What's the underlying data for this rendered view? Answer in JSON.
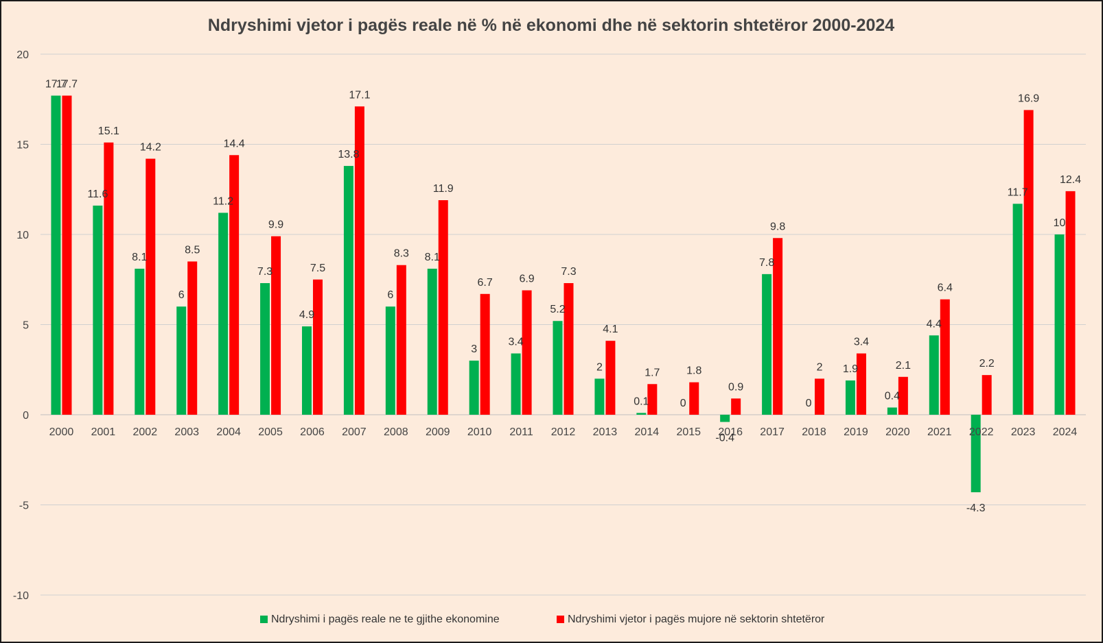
{
  "chart_data": {
    "type": "bar",
    "title": "Ndryshimi vjetor i pagës reale në % në ekonomi dhe në sektorin shtetëror 2000-2024",
    "categories": [
      "2000",
      "2001",
      "2002",
      "2003",
      "2004",
      "2005",
      "2006",
      "2007",
      "2008",
      "2009",
      "2010",
      "2011",
      "2012",
      "2013",
      "2014",
      "2015",
      "2016",
      "2017",
      "2018",
      "2019",
      "2020",
      "2021",
      "2022",
      "2023",
      "2024"
    ],
    "series": [
      {
        "name": "Ndryshimi i pagës reale ne te gjithe ekonomine",
        "color": "#00b050",
        "values": [
          17.7,
          11.6,
          8.1,
          6,
          11.2,
          7.3,
          4.9,
          13.8,
          6,
          8.1,
          3,
          3.4,
          5.2,
          2,
          0.1,
          0,
          -0.4,
          7.8,
          0,
          1.9,
          0.4,
          4.4,
          -4.3,
          11.7,
          10
        ]
      },
      {
        "name": "Ndryshimi vjetor i pagës mujore në sektorin shtetëror",
        "color": "#ff0000",
        "values": [
          17.7,
          15.1,
          14.2,
          8.5,
          14.4,
          9.9,
          7.5,
          17.1,
          8.3,
          11.9,
          6.7,
          6.9,
          7.3,
          4.1,
          1.7,
          1.8,
          0.9,
          9.8,
          2,
          3.4,
          2.1,
          6.4,
          2.2,
          16.9,
          12.4
        ]
      }
    ],
    "ylim": [
      -10,
      20
    ],
    "yticks": [
      -10,
      -5,
      0,
      5,
      10,
      15,
      20
    ],
    "grid": true,
    "legend_position": "bottom",
    "data_labels": true
  }
}
